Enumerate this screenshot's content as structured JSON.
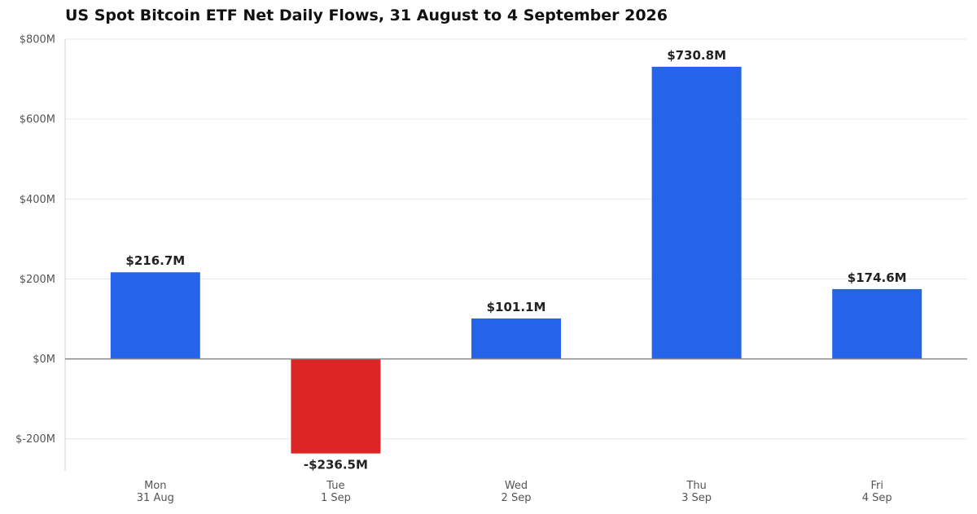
{
  "chart_data": {
    "type": "bar",
    "title": "US Spot Bitcoin ETF Net Daily Flows, 31 August to 4 September 2026",
    "xlabel": "",
    "ylabel": "",
    "categories": [
      [
        "Mon",
        "31 Aug"
      ],
      [
        "Tue",
        "1 Sep"
      ],
      [
        "Wed",
        "2 Sep"
      ],
      [
        "Thu",
        "3 Sep"
      ],
      [
        "Fri",
        "4 Sep"
      ]
    ],
    "values": [
      216.7,
      -236.5,
      101.1,
      730.8,
      174.6
    ],
    "value_labels": [
      "$216.7M",
      "-$236.5M",
      "$101.1M",
      "$730.8M",
      "$174.6M"
    ],
    "ylim": [
      -280,
      800
    ],
    "yticks": [
      -200,
      0,
      200,
      400,
      600,
      800
    ],
    "ytick_labels": [
      "$-200M",
      "$0M",
      "$200M",
      "$400M",
      "$600M",
      "$800M"
    ],
    "grid": true,
    "legend": "none",
    "colors": {
      "positive": "#2563eb",
      "negative": "#dc2626",
      "gridline": "#e8e8e8",
      "zero_line": "#888888",
      "axis": "#cccccc"
    }
  }
}
